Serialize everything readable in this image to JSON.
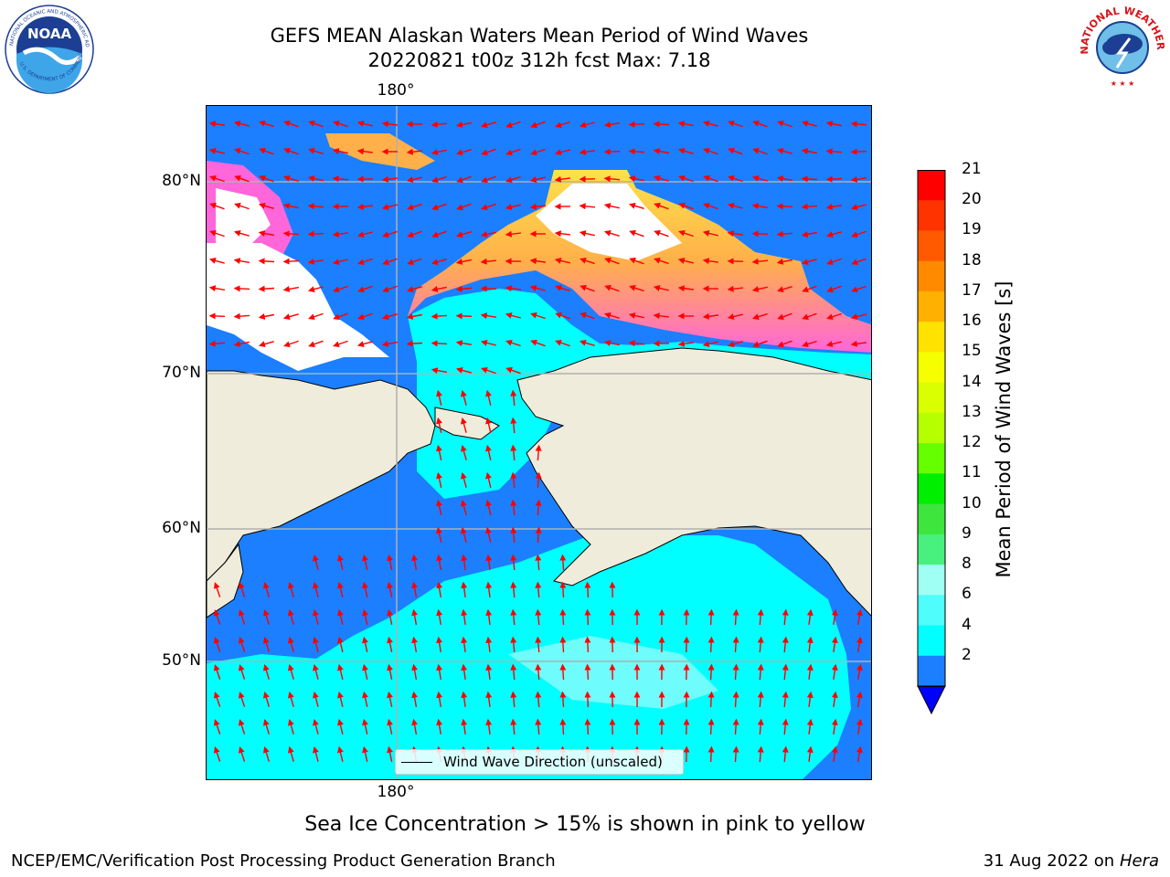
{
  "title": {
    "line1": "GEFS MEAN Alaskan Waters Mean Period of Wind Waves",
    "line2": "20220821 t00z 312h fcst   Max: 7.18"
  },
  "logos": {
    "left": {
      "name": "NOAA",
      "ring_text": "NATIONAL OCEANIC AND ATMOSPHERIC ADMINISTRATION · U.S. DEPARTMENT OF COMMERCE"
    },
    "right": {
      "name": "NATIONAL WEATHER SERVICE"
    }
  },
  "map": {
    "lon_top_label": "180°",
    "lon_bottom_label": "180°",
    "lat_labels": [
      "80°N",
      "70°N",
      "60°N",
      "50°N"
    ],
    "legend_label": "Wind Wave Direction (unscaled)",
    "colors": {
      "land": "#efecdc",
      "ice": "#ffffff",
      "band_2_4": "#1b7fff",
      "band_4_6": "#00ffff",
      "band_6_8": "#6ffcfc",
      "arrow": "#ff0000",
      "grid": "#b0b0b0"
    }
  },
  "colorbar": {
    "label": "Mean Period of Wind Waves [s]",
    "ticks": [
      "21",
      "20",
      "19",
      "18",
      "17",
      "16",
      "15",
      "14",
      "13",
      "12",
      "11",
      "10",
      "9",
      "8",
      "6",
      "4",
      "2"
    ],
    "colors": [
      "#ff0000",
      "#ff3300",
      "#ff5a00",
      "#ff8a00",
      "#ffb000",
      "#ffe200",
      "#f5ff00",
      "#d9ff00",
      "#b5ff00",
      "#66ff00",
      "#00ee00",
      "#3de53d",
      "#48f07e",
      "#a0fff3",
      "#4ffdfa",
      "#00ffff",
      "#1b7fff"
    ],
    "under_color": "#0000ff"
  },
  "caption": "Sea Ice Concentration > 15% is shown in pink to yellow",
  "footer": {
    "left": "NCEP/EMC/Verification Post Processing Product Generation Branch",
    "right_date": "31 Aug 2022 on",
    "right_host": "Hera"
  }
}
